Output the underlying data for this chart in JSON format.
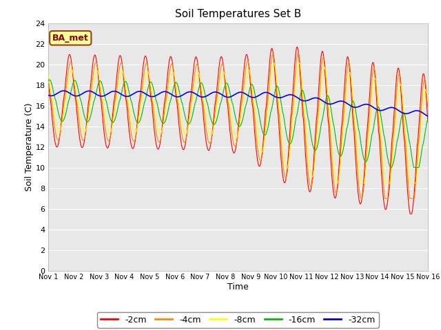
{
  "title": "Soil Temperatures Set B",
  "xlabel": "Time",
  "ylabel": "Soil Temperature (C)",
  "ylim": [
    0,
    24
  ],
  "annotation": "BA_met",
  "colors": {
    "-2cm": "#ff0000",
    "-4cm": "#ff8800",
    "-8cm": "#ffff00",
    "-16cm": "#00bb00",
    "-32cm": "#0000ee"
  },
  "legend_labels": [
    "-2cm",
    "-4cm",
    "-8cm",
    "-16cm",
    "-32cm"
  ],
  "plot_bg": "#e8e8e8",
  "fig_bg": "#ffffff",
  "grid_color": "#ffffff",
  "yticks": [
    0,
    2,
    4,
    6,
    8,
    10,
    12,
    14,
    16,
    18,
    20,
    22,
    24
  ],
  "xtick_labels": [
    "Nov 1",
    "Nov 2",
    "Nov 3",
    "Nov 4",
    "Nov 5",
    "Nov 6",
    "Nov 7",
    "Nov 8",
    "Nov 9",
    "Nov 10",
    "Nov 11",
    "Nov 12",
    "Nov 13",
    "Nov 14",
    "Nov 15",
    "Nov 16"
  ]
}
